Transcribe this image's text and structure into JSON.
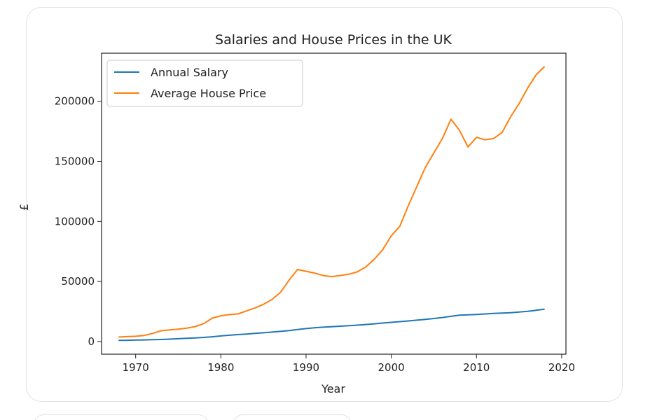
{
  "chart_data": {
    "type": "line",
    "title": "Salaries and House Prices in the UK",
    "xlabel": "Year",
    "ylabel": "£",
    "xlim": [
      1966,
      2020.5
    ],
    "ylim": [
      -10500,
      240000
    ],
    "xticks": [
      1970,
      1980,
      1990,
      2000,
      2010,
      2020
    ],
    "yticks": [
      0,
      50000,
      100000,
      150000,
      200000
    ],
    "xtick_labels": [
      "1970",
      "1980",
      "1990",
      "2000",
      "2010",
      "2020"
    ],
    "ytick_labels": [
      "0",
      "50000",
      "100000",
      "150000",
      "200000"
    ],
    "legend_position": "upper-left",
    "grid": false,
    "x": [
      1968,
      1969,
      1970,
      1971,
      1972,
      1973,
      1974,
      1975,
      1976,
      1977,
      1978,
      1979,
      1980,
      1981,
      1982,
      1983,
      1984,
      1985,
      1986,
      1987,
      1988,
      1989,
      1990,
      1991,
      1992,
      1993,
      1994,
      1995,
      1996,
      1997,
      1998,
      1999,
      2000,
      2001,
      2002,
      2003,
      2004,
      2005,
      2006,
      2007,
      2008,
      2009,
      2010,
      2011,
      2012,
      2013,
      2014,
      2015,
      2016,
      2017,
      2018
    ],
    "series": [
      {
        "name": "Annual Salary",
        "color": "#1f77b4",
        "values": [
          1000,
          1100,
          1250,
          1400,
          1550,
          1750,
          2000,
          2400,
          2800,
          3100,
          3500,
          4000,
          4700,
          5300,
          5800,
          6300,
          6800,
          7300,
          7900,
          8500,
          9200,
          10000,
          10800,
          11500,
          12000,
          12400,
          12800,
          13200,
          13700,
          14200,
          14800,
          15400,
          16000,
          16600,
          17200,
          17800,
          18500,
          19200,
          20000,
          21000,
          22000,
          22300,
          22600,
          23000,
          23400,
          23700,
          24000,
          24600,
          25200,
          26000,
          27000
        ]
      },
      {
        "name": "Average House Price",
        "color": "#ff7f0e",
        "values": [
          3800,
          4100,
          4400,
          5100,
          6800,
          9000,
          9800,
          10300,
          11200,
          12500,
          15000,
          19500,
          21500,
          22500,
          23000,
          25500,
          28000,
          31000,
          35000,
          41000,
          51000,
          60000,
          58500,
          57000,
          55000,
          54000,
          55000,
          56000,
          58000,
          62000,
          68500,
          76500,
          88000,
          96000,
          113000,
          129000,
          145000,
          157000,
          169000,
          185000,
          176000,
          162000,
          170000,
          168000,
          169000,
          174000,
          187000,
          198000,
          211000,
          222000,
          229000
        ]
      }
    ]
  }
}
